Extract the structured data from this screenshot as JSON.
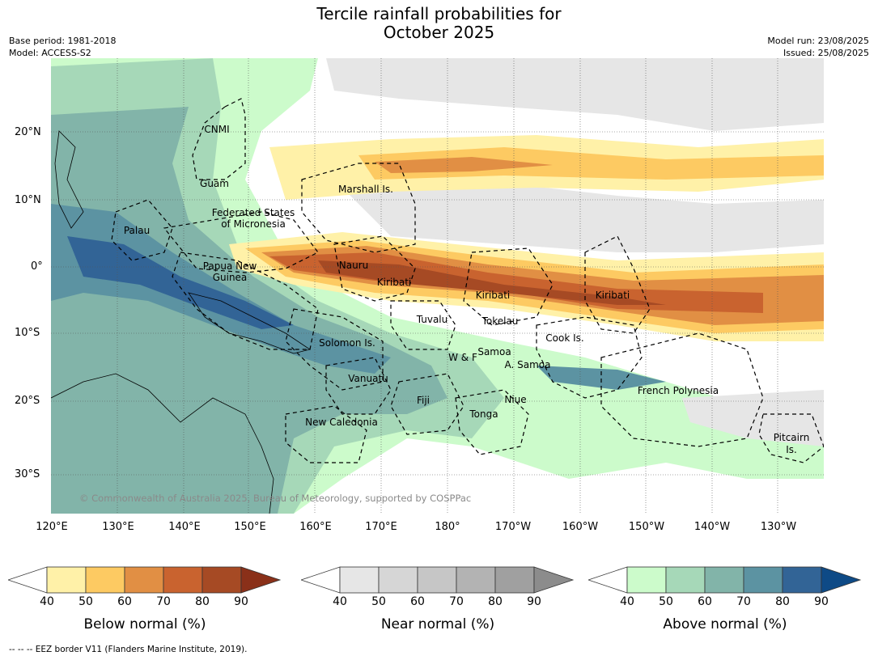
{
  "title": {
    "line1": "Tercile rainfall probabilities for",
    "line2": "October 2025"
  },
  "meta_left": {
    "base_period": "Base period: 1981-2018",
    "model": "Model: ACCESS-S2"
  },
  "meta_right": {
    "model_run": "Model run: 23/08/2025",
    "issued": "Issued: 25/08/2025"
  },
  "map": {
    "lat_labels": [
      "20°N",
      "10°N",
      "0°",
      "10°S",
      "20°S",
      "30°S"
    ],
    "lon_labels": [
      "120°E",
      "130°E",
      "140°E",
      "150°E",
      "160°E",
      "170°E",
      "180°",
      "170°W",
      "160°W",
      "150°W",
      "140°W",
      "130°W"
    ],
    "regions": [
      "CNMI",
      "Guam",
      "Palau",
      "Federated States\nof Micronesia",
      "Marshall Is.",
      "Papua New\nGuinea",
      "Nauru",
      "Kiribati",
      "Kiribati",
      "Kiribati",
      "Tuvalu",
      "Tokelau",
      "Solomon Is.",
      "Samoa",
      "W & F",
      "A. Samoa",
      "Cook Is.",
      "Vanuatu",
      "Fiji",
      "Niue",
      "Tonga",
      "French Polynesia",
      "New Caledonia",
      "Pitcairn\nIs."
    ],
    "copyright": "© Commonwealth of Australia 2025, Bureau of Meteorology, supported by COSPPac"
  },
  "colorbars": [
    {
      "label": "Below normal (%)",
      "ticks": [
        "40",
        "50",
        "60",
        "70",
        "80",
        "90"
      ],
      "colors": [
        "#fff1a8",
        "#fdca62",
        "#e18f44",
        "#c9632f",
        "#a64a24",
        "#8a3019"
      ]
    },
    {
      "label": "Near normal (%)",
      "ticks": [
        "40",
        "50",
        "60",
        "70",
        "80",
        "90"
      ],
      "colors": [
        "#e6e6e6",
        "#d6d6d6",
        "#c6c6c6",
        "#b3b3b3",
        "#a0a0a0",
        "#8c8c8c"
      ]
    },
    {
      "label": "Above normal (%)",
      "ticks": [
        "40",
        "50",
        "60",
        "70",
        "80",
        "90"
      ],
      "colors": [
        "#ccfbcb",
        "#a6d8b8",
        "#82b4a9",
        "#5c93a2",
        "#326496",
        "#0e4a86"
      ]
    }
  ],
  "footer": "--  --  -- EEZ border V11 (Flanders Marine Institute, 2019)."
}
